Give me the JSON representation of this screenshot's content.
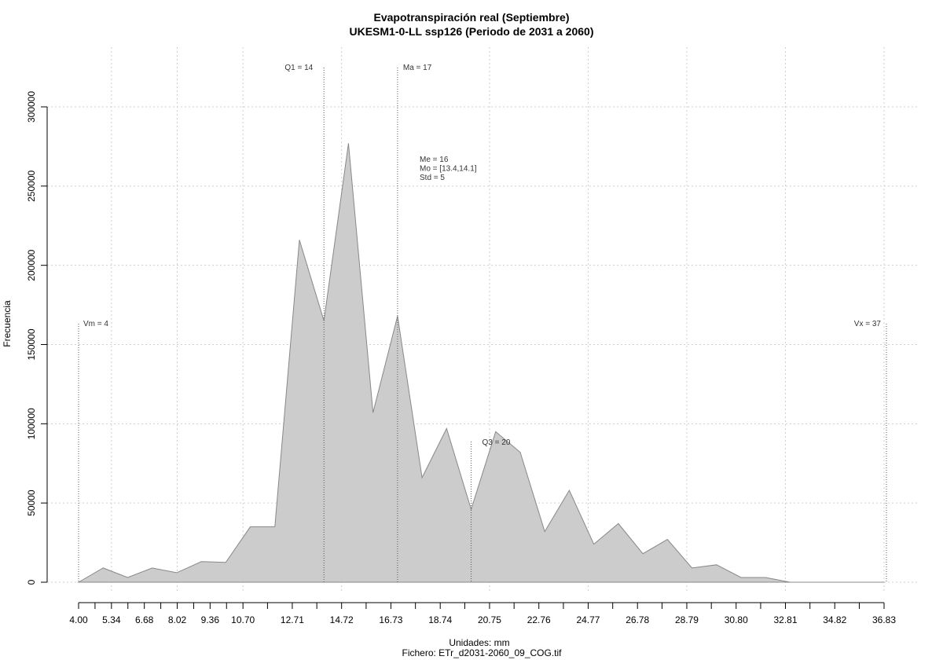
{
  "chart_data": {
    "type": "area",
    "title": "Evapotranspiración real (Septiembre)",
    "subtitle": "UKESM1-0-LL ssp126 (Periodo de 2031 a 2060)",
    "xlabel": "Unidades: mm",
    "file_label": "Fichero: ETr_d2031-2060_09_COG.tif",
    "ylabel": "Frecuencia",
    "xlim": [
      4.0,
      36.83
    ],
    "ylim": [
      0,
      300000
    ],
    "x_tick_labels": [
      "4.00",
      "5.34",
      "6.68",
      "8.02",
      "9.36",
      "10.70",
      "12.71",
      "14.72",
      "16.73",
      "18.74",
      "20.75",
      "22.76",
      "24.77",
      "26.78",
      "28.79",
      "30.80",
      "32.81",
      "34.82",
      "36.83"
    ],
    "y_ticks": [
      0,
      50000,
      100000,
      150000,
      200000,
      250000,
      300000
    ],
    "y_tick_labels": [
      "0",
      "50000",
      "100000",
      "150000",
      "200000",
      "250000",
      "300000"
    ],
    "grid": true,
    "fill_color": "#cccccc",
    "line_color": "#888888",
    "x": [
      4.0,
      5.0,
      6.0,
      7.0,
      8.0,
      9.0,
      10.0,
      11.0,
      12.0,
      13.0,
      14.0,
      15.0,
      16.0,
      17.0,
      18.0,
      19.0,
      20.0,
      21.0,
      22.0,
      23.0,
      24.0,
      25.0,
      26.0,
      27.0,
      28.0,
      29.0,
      30.0,
      31.0,
      32.0,
      33.0,
      34.0,
      35.0,
      36.0,
      36.83
    ],
    "values": [
      0,
      9000,
      3000,
      9000,
      6000,
      13000,
      12500,
      35000,
      35000,
      216000,
      165000,
      277000,
      107000,
      168000,
      66000,
      97000,
      46000,
      95000,
      82000,
      32000,
      58000,
      24000,
      37000,
      18000,
      27000,
      9000,
      11000,
      3000,
      3000,
      0,
      0,
      0,
      0,
      0
    ],
    "annotations": {
      "vm": {
        "label": "Vm = 4",
        "x": 4.0
      },
      "q1": {
        "label": "Q1 = 14",
        "x": 14.0
      },
      "ma": {
        "label": "Ma = 17",
        "x": 17.0
      },
      "q3": {
        "label": "Q3 = 20",
        "x": 20.0
      },
      "vx": {
        "label": "Vx = 37",
        "x": 37.0
      },
      "stats": [
        "Me = 16",
        "Mo = [13.4,14.1]",
        "Std = 5"
      ]
    }
  }
}
